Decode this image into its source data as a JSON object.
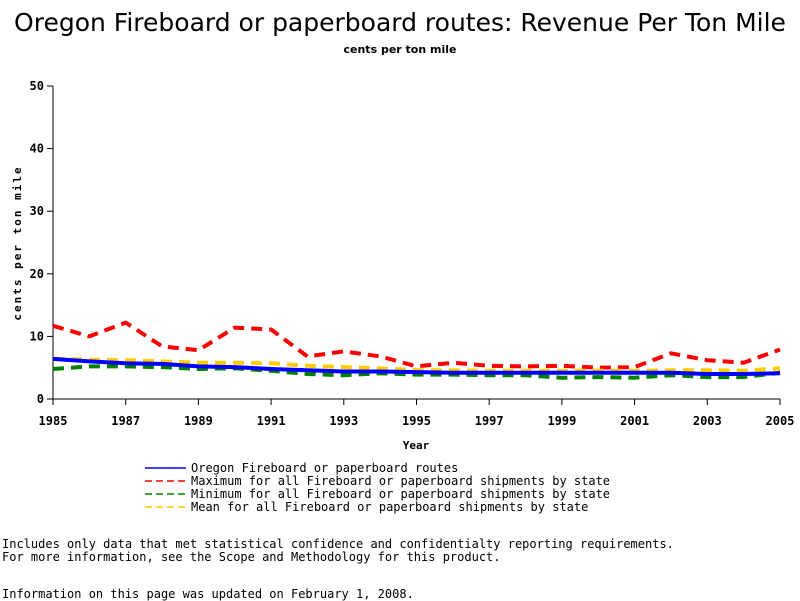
{
  "chart_data": {
    "type": "line",
    "title": "Oregon Fireboard or paperboard routes: Revenue Per Ton Mile",
    "subtitle": "cents per ton mile",
    "xlabel": "Year",
    "ylabel": "cents per ton mile",
    "xlim": [
      1985,
      2005
    ],
    "ylim": [
      0,
      50
    ],
    "x_ticks": [
      1985,
      1987,
      1989,
      1991,
      1993,
      1995,
      1997,
      1999,
      2001,
      2003,
      2005
    ],
    "y_ticks": [
      0,
      10,
      20,
      30,
      40,
      50
    ],
    "x": [
      1985,
      1986,
      1987,
      1988,
      1989,
      1990,
      1991,
      1992,
      1993,
      1994,
      1995,
      1996,
      1997,
      1998,
      1999,
      2000,
      2001,
      2002,
      2003,
      2004,
      2005
    ],
    "legend_placement": "bottom",
    "series": [
      {
        "name": "Oregon Fireboard or paperboard routes",
        "color": "#0000ff",
        "style": "solid",
        "values": [
          6.4,
          6.0,
          5.7,
          5.6,
          5.2,
          5.1,
          4.8,
          4.6,
          4.4,
          4.4,
          4.3,
          4.2,
          4.2,
          4.2,
          4.2,
          4.2,
          4.2,
          4.2,
          4.0,
          4.0,
          4.1
        ]
      },
      {
        "name": "Maximum for all Fireboard or paperboard shipments by state",
        "color": "#ff0000",
        "style": "dashed",
        "values": [
          11.7,
          10.0,
          12.2,
          8.4,
          7.8,
          11.4,
          11.1,
          6.8,
          7.6,
          6.8,
          5.2,
          5.8,
          5.3,
          5.2,
          5.3,
          5.0,
          5.1,
          7.3,
          6.2,
          5.8,
          7.9
        ]
      },
      {
        "name": "Minimum for all Fireboard or paperboard shipments by state",
        "color": "#008000",
        "style": "dashed",
        "values": [
          4.8,
          5.2,
          5.2,
          5.1,
          4.8,
          4.9,
          4.5,
          4.0,
          3.8,
          4.1,
          3.9,
          3.9,
          3.8,
          3.8,
          3.4,
          3.5,
          3.4,
          3.8,
          3.5,
          3.5,
          4.2
        ]
      },
      {
        "name": "Mean for all Fireboard or paperboard shipments by state",
        "color": "#ffcc00",
        "style": "dashed",
        "values": [
          6.4,
          6.3,
          6.2,
          6.0,
          5.8,
          5.8,
          5.7,
          5.3,
          5.1,
          4.9,
          4.6,
          4.6,
          4.5,
          4.5,
          4.5,
          4.5,
          4.5,
          4.6,
          4.6,
          4.5,
          4.9
        ]
      }
    ]
  },
  "notes": {
    "line1": "Includes only data that met statistical confidence and confidentialty reporting requirements.",
    "line2": "For more information, see the Scope and Methodology for this product.",
    "updated": "Information on this page was updated on February 1, 2008."
  }
}
